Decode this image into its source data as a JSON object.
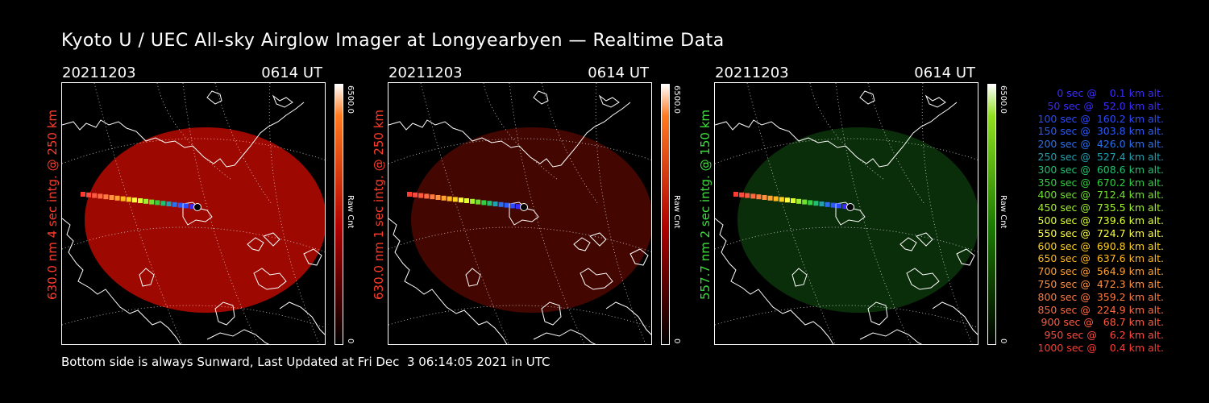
{
  "title": "Kyoto U / UEC All-sky Airglow Imager at Longyearbyen — Realtime Data",
  "panels": [
    {
      "date": "20211203",
      "time": "0614 UT",
      "ylabel": "630.0 nm 4 sec intg. @ 250 km",
      "cbar_max": "6500.0",
      "cbar_unit": "Raw Cnt",
      "cbar_min": "0",
      "label_color": "#ff3b2a",
      "glow": "#c00a00",
      "glow_opacity": 0.82,
      "cbar_top": "#ff7a20",
      "cbar_mid": "#b00000"
    },
    {
      "date": "20211203",
      "time": "0614 UT",
      "ylabel": "630.0 nm 1 sec intg. @ 250 km",
      "cbar_max": "6500.0",
      "cbar_unit": "Raw Cnt",
      "cbar_min": "0",
      "label_color": "#ff3b2a",
      "glow": "#5a0800",
      "glow_opacity": 0.75,
      "cbar_top": "#ff7a20",
      "cbar_mid": "#b00000"
    },
    {
      "date": "20211203",
      "time": "0614 UT",
      "ylabel": "557.7 nm 2 sec intg. @ 150 km",
      "cbar_max": "6500.0",
      "cbar_unit": "Raw Cnt",
      "cbar_min": "0",
      "label_color": "#3be03b",
      "glow": "#0e3a0c",
      "glow_opacity": 0.8,
      "cbar_top": "#90e020",
      "cbar_mid": "#1a7a00"
    }
  ],
  "legend": [
    {
      "text": "   0 sec @    0.1 km alt.",
      "color": "#3a2bff"
    },
    {
      "text": "  50 sec @   52.0 km alt.",
      "color": "#3a2bff"
    },
    {
      "text": " 100 sec @  160.2 km alt.",
      "color": "#2a4bff"
    },
    {
      "text": " 150 sec @  303.8 km alt.",
      "color": "#2a5bff"
    },
    {
      "text": " 200 sec @  426.0 km alt.",
      "color": "#2a70ee"
    },
    {
      "text": " 250 sec @  527.4 km alt.",
      "color": "#20a0b0"
    },
    {
      "text": " 300 sec @  608.6 km alt.",
      "color": "#20c070"
    },
    {
      "text": " 350 sec @  670.2 km alt.",
      "color": "#30d040"
    },
    {
      "text": " 400 sec @  712.4 km alt.",
      "color": "#70e030"
    },
    {
      "text": " 450 sec @  735.5 km alt.",
      "color": "#a0f030"
    },
    {
      "text": " 500 sec @  739.6 km alt.",
      "color": "#e0ff30"
    },
    {
      "text": " 550 sec @  724.7 km alt.",
      "color": "#ffff40"
    },
    {
      "text": " 600 sec @  690.8 km alt.",
      "color": "#ffd020"
    },
    {
      "text": " 650 sec @  637.6 km alt.",
      "color": "#ffb820"
    },
    {
      "text": " 700 sec @  564.9 km alt.",
      "color": "#ffa030"
    },
    {
      "text": " 750 sec @  472.3 km alt.",
      "color": "#ff9040"
    },
    {
      "text": " 800 sec @  359.2 km alt.",
      "color": "#ff7a40"
    },
    {
      "text": " 850 sec @  224.9 km alt.",
      "color": "#ff6a40"
    },
    {
      "text": " 900 sec @   68.7 km alt.",
      "color": "#ff5a40"
    },
    {
      "text": " 950 sec @    6.2 km alt.",
      "color": "#ff4a40"
    },
    {
      "text": "1000 sec @    0.4 km alt.",
      "color": "#ff3a30"
    }
  ],
  "footer": "Bottom side is always Sunward, Last Updated at Fri Dec  3 06:14:05 2021 in UTC"
}
